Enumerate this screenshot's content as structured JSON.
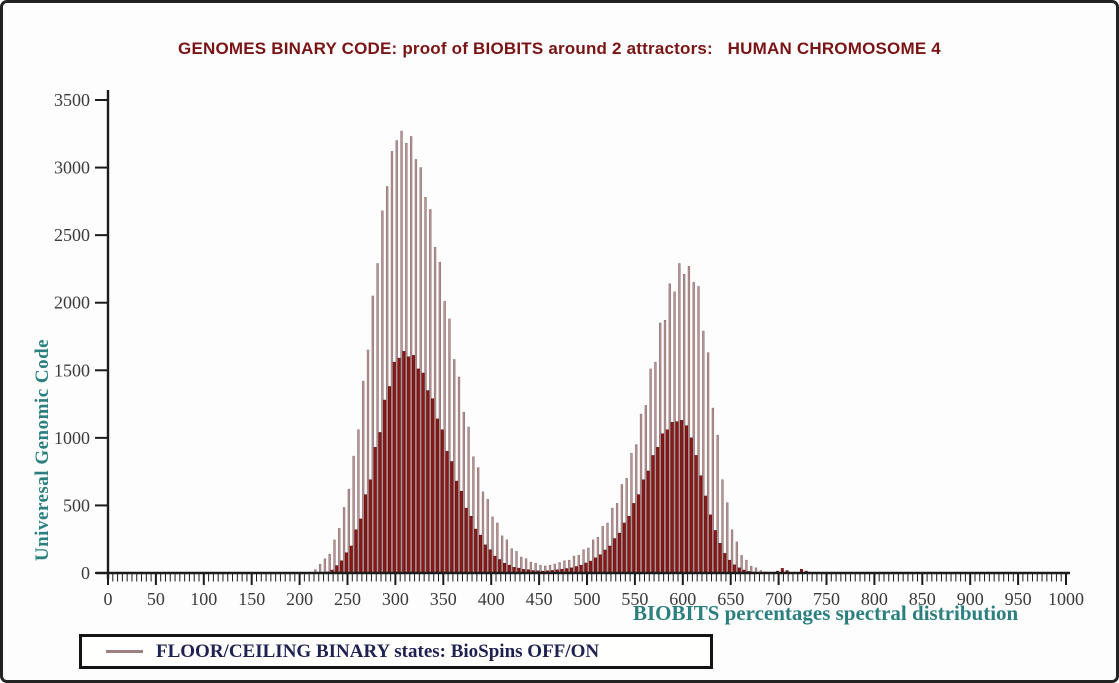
{
  "chart_data": {
    "type": "bar",
    "title": "GENOMES BINARY CODE: proof of BIOBITS around 2 attractors:   HUMAN CHROMOSOME 4",
    "xlabel": "BIOBITS percentages spectral distribution",
    "ylabel": "Univeresal Genomic Code",
    "xlim": [
      0,
      1035
    ],
    "ylim": [
      0,
      3500
    ],
    "grid": false,
    "x_ticks": [
      0,
      50,
      100,
      150,
      200,
      250,
      300,
      350,
      400,
      450,
      500,
      550,
      600,
      650,
      700,
      750,
      800,
      850,
      900,
      950,
      1000
    ],
    "y_ticks": [
      0,
      500,
      1000,
      1500,
      2000,
      2500,
      3000,
      3500
    ],
    "minor_x_tick_step": 5,
    "x_start": 0,
    "x_step": 5,
    "series": [
      {
        "name": "CEILING binary state (BioSpins ON)",
        "color": "#b39494",
        "edge_color": "#8a6868",
        "values": [
          0,
          0,
          0,
          0,
          0,
          0,
          0,
          0,
          0,
          0,
          0,
          0,
          0,
          0,
          0,
          0,
          0,
          0,
          0,
          0,
          0,
          0,
          0,
          0,
          0,
          0,
          0,
          0,
          0,
          0,
          0,
          0,
          0,
          0,
          0,
          0,
          0,
          0,
          0,
          0,
          0,
          0,
          0,
          25,
          65,
          105,
          140,
          245,
          330,
          485,
          620,
          865,
          1060,
          1420,
          1650,
          2050,
          2290,
          2680,
          2860,
          3120,
          3200,
          3270,
          3180,
          3230,
          3060,
          3000,
          2780,
          2690,
          2410,
          2300,
          2010,
          1880,
          1580,
          1450,
          1190,
          1080,
          860,
          780,
          600,
          545,
          415,
          370,
          275,
          245,
          180,
          160,
          118,
          106,
          80,
          72,
          58,
          52,
          57,
          66,
          78,
          90,
          95,
          125,
          132,
          172,
          185,
          245,
          265,
          345,
          370,
          480,
          515,
          655,
          700,
          885,
          950,
          1175,
          1240,
          1510,
          1560,
          1850,
          1870,
          2140,
          2080,
          2290,
          2210,
          2270,
          2150,
          2120,
          1790,
          1630,
          1220,
          1020,
          690,
          520,
          320,
          230,
          130,
          95,
          50,
          38,
          18,
          8,
          0,
          0,
          0,
          0,
          0,
          0,
          0,
          0,
          0,
          0,
          0,
          0,
          0,
          0,
          0,
          0,
          0,
          0,
          0,
          0,
          0,
          0,
          0,
          0,
          0,
          0,
          0,
          0,
          0,
          0,
          0,
          0,
          0,
          0,
          0,
          0,
          0,
          0,
          0,
          0,
          0,
          0,
          0,
          0,
          0,
          0,
          0,
          0,
          0,
          0,
          0,
          0,
          0,
          0,
          0,
          0,
          0,
          0,
          0,
          0,
          0,
          0,
          0
        ]
      },
      {
        "name": "FLOOR binary state (BioSpins OFF)",
        "color": "#8e1717",
        "edge_color": "#520d0d",
        "values": [
          0,
          0,
          0,
          0,
          0,
          0,
          0,
          0,
          0,
          0,
          0,
          0,
          0,
          0,
          0,
          0,
          0,
          0,
          0,
          0,
          0,
          0,
          0,
          0,
          0,
          0,
          0,
          0,
          0,
          0,
          0,
          0,
          0,
          0,
          0,
          0,
          0,
          0,
          0,
          0,
          0,
          0,
          0,
          0,
          0,
          0,
          8,
          22,
          55,
          90,
          150,
          200,
          320,
          400,
          580,
          690,
          930,
          1040,
          1280,
          1380,
          1560,
          1590,
          1640,
          1600,
          1610,
          1510,
          1480,
          1350,
          1290,
          1140,
          1060,
          900,
          825,
          680,
          605,
          480,
          420,
          325,
          280,
          208,
          172,
          125,
          100,
          72,
          58,
          42,
          36,
          27,
          24,
          18,
          16,
          14,
          16,
          19,
          24,
          28,
          33,
          38,
          48,
          58,
          74,
          88,
          112,
          135,
          170,
          200,
          255,
          295,
          370,
          420,
          515,
          580,
          690,
          755,
          870,
          930,
          1030,
          1060,
          1115,
          1120,
          1130,
          1090,
          1000,
          870,
          720,
          570,
          430,
          315,
          220,
          145,
          95,
          60,
          38,
          22,
          12,
          6,
          4,
          0,
          0,
          0,
          14,
          34,
          18,
          0,
          0,
          28,
          14,
          0,
          0,
          0,
          0,
          0,
          0,
          0,
          0,
          0,
          0,
          0,
          0,
          0,
          0,
          0,
          0,
          0,
          0,
          0,
          0,
          0,
          0,
          0,
          0,
          0,
          0,
          0,
          0,
          0,
          0,
          0,
          0,
          0,
          0,
          0,
          0,
          0,
          0,
          0,
          0,
          0,
          0,
          0,
          0,
          0,
          0,
          0,
          0,
          0,
          0,
          0,
          0,
          0,
          0
        ]
      }
    ],
    "legend": {
      "label": "FLOOR/CEILING BINARY states: BioSpins OFF/ON",
      "position": "bottom-left",
      "line_color": "#9f8080"
    }
  },
  "colors": {
    "title_maroon": "#7a1414",
    "accent_teal": "#2b7f7f",
    "axis": "#1c1c1c",
    "tick_label": "#3b3b3b",
    "legend_text": "#1f2150",
    "ceiling_bar": "#b39494",
    "floor_bar": "#8e1717"
  }
}
